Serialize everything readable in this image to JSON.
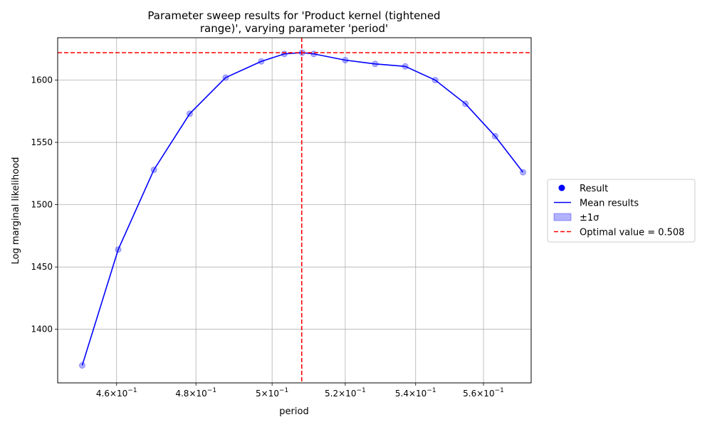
{
  "chart_data": {
    "type": "line",
    "title_lines": [
      "Parameter sweep results for 'Product kernel (tightened",
      "range)', varying parameter 'period'"
    ],
    "xlabel": "period",
    "ylabel": "Log marginal likelihood",
    "x_scale": "log",
    "xlim": [
      0.4457,
      0.5745
    ],
    "ylim": [
      1357,
      1634
    ],
    "x_ticks": [
      {
        "value": 0.46,
        "mantissa": "4.6",
        "base": "10",
        "exp": "−1"
      },
      {
        "value": 0.48,
        "mantissa": "4.8",
        "base": "10",
        "exp": "−1"
      },
      {
        "value": 0.5,
        "mantissa": "5",
        "base": "10",
        "exp": "−1"
      },
      {
        "value": 0.52,
        "mantissa": "5.2",
        "base": "10",
        "exp": "−1"
      },
      {
        "value": 0.54,
        "mantissa": "5.4",
        "base": "10",
        "exp": "−1"
      },
      {
        "value": 0.56,
        "mantissa": "5.6",
        "base": "10",
        "exp": "−1"
      }
    ],
    "y_ticks": [
      1400,
      1450,
      1500,
      1550,
      1600
    ],
    "grid": true,
    "x": [
      0.4516,
      0.4604,
      0.4693,
      0.4784,
      0.4877,
      0.4971,
      0.5033,
      0.5081,
      0.5113,
      0.52,
      0.5284,
      0.537,
      0.5457,
      0.5546,
      0.5635,
      0.572
    ],
    "series": [
      {
        "name": "Result",
        "style": "points",
        "color": "#0000ff",
        "values": [
          1371,
          1464,
          1528,
          1573,
          1602,
          1615,
          1621,
          1622,
          1621,
          1616,
          1613,
          1611,
          1600,
          1581,
          1555,
          1526
        ]
      },
      {
        "name": "Mean results",
        "style": "line",
        "color": "#0000ff",
        "values": [
          1371,
          1464,
          1528,
          1573,
          1602,
          1615,
          1621,
          1622,
          1621,
          1616,
          1613,
          1611,
          1600,
          1581,
          1555,
          1526
        ]
      }
    ],
    "band": {
      "label": "±1σ",
      "color": "#0000ff"
    },
    "optimal": {
      "x": 0.508,
      "y": 1622,
      "label": "Optimal value = 0.508",
      "color": "#ff0000"
    },
    "legend_position": "right",
    "legend": [
      {
        "label": "Result",
        "kind": "marker",
        "color": "#0000ff"
      },
      {
        "label": "Mean results",
        "kind": "line",
        "color": "#0000ff"
      },
      {
        "label": "±1σ",
        "kind": "patch",
        "color": "#0000ff"
      },
      {
        "label": "Optimal value = 0.508",
        "kind": "dashed",
        "color": "#ff0000"
      }
    ]
  }
}
